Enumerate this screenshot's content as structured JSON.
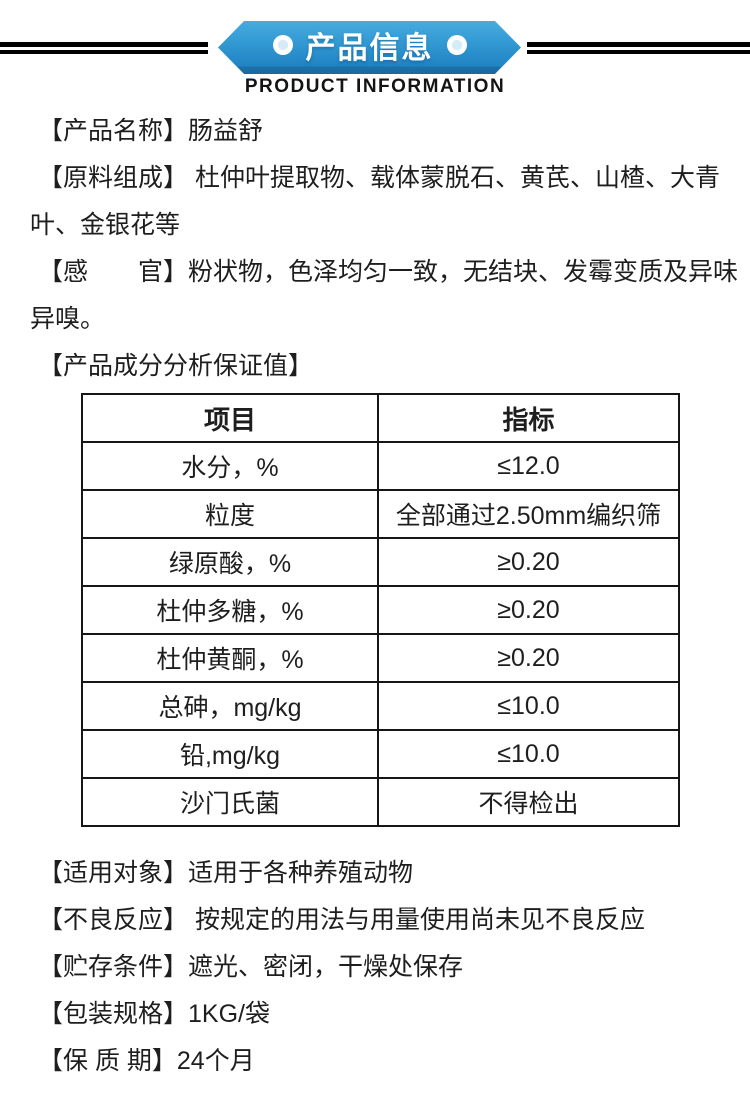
{
  "banner": {
    "title": "产品信息",
    "subtitle": "PRODUCT INFORMATION",
    "ribbon_blue_top": "#47abde",
    "ribbon_blue_bottom": "#2083c3",
    "ribbon_fold_blue": "#1d71ab",
    "dot_icon": "circle-dot",
    "rule_color": "#000000"
  },
  "fields_top": {
    "product_name_line": "【产品名称】肠益舒",
    "ingredients_line1": "【原料组成】 杜仲叶提取物、载体蒙脱石、黄芪、山楂、大青",
    "ingredients_line2": "叶、金银花等",
    "sensory_line1": "【感　　官】粉状物，色泽均匀一致，无结块、发霉变质及异味",
    "sensory_line2": "异嗅。",
    "guarantee_heading": "【产品成分分析保证值】"
  },
  "spec_table": {
    "headers": [
      "项目",
      "指标"
    ],
    "rows": [
      {
        "item": "水分，%",
        "value": "≤12.0"
      },
      {
        "item": "粒度",
        "value": "全部通过2.50mm编织筛"
      },
      {
        "item": "绿原酸，%",
        "value": "≥0.20"
      },
      {
        "item": "杜仲多糖，%",
        "value": "≥0.20"
      },
      {
        "item": "杜仲黄酮，%",
        "value": "≥0.20"
      },
      {
        "item": "总砷，mg/kg",
        "value": "≤10.0"
      },
      {
        "item": "铅,mg/kg",
        "value": "≤10.0"
      },
      {
        "item": "沙门氏菌",
        "value": "不得检出"
      }
    ]
  },
  "fields_bottom": {
    "applicable_targets": "【适用对象】适用于各种养殖动物",
    "adverse_reaction": "【不良反应】 按规定的用法与用量使用尚未见不良反应",
    "storage_conditions": "【贮存条件】遮光、密闭，干燥处保存",
    "package_spec": "【包装规格】1KG/袋",
    "shelf_life": "【保 质 期】24个月"
  },
  "text_color": "#1e1e1e"
}
